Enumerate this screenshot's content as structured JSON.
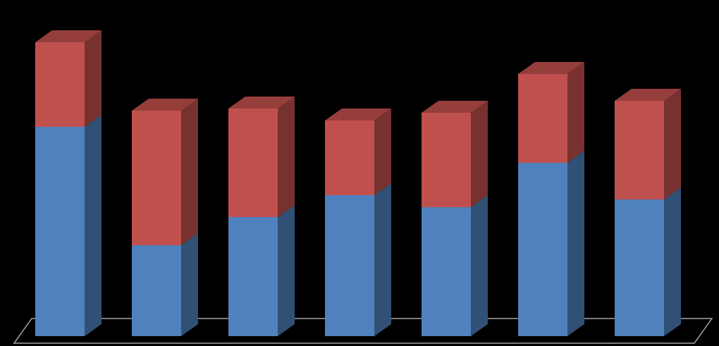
{
  "chart_data": {
    "type": "bar",
    "stacked": true,
    "three_d": true,
    "series": [
      {
        "color": "#4f81bd",
        "values": [
          297,
          129,
          169,
          200,
          183,
          246,
          194
        ]
      },
      {
        "color": "#c0504d",
        "values": [
          120,
          191,
          154,
          106,
          134,
          126,
          140
        ]
      }
    ]
  }
}
